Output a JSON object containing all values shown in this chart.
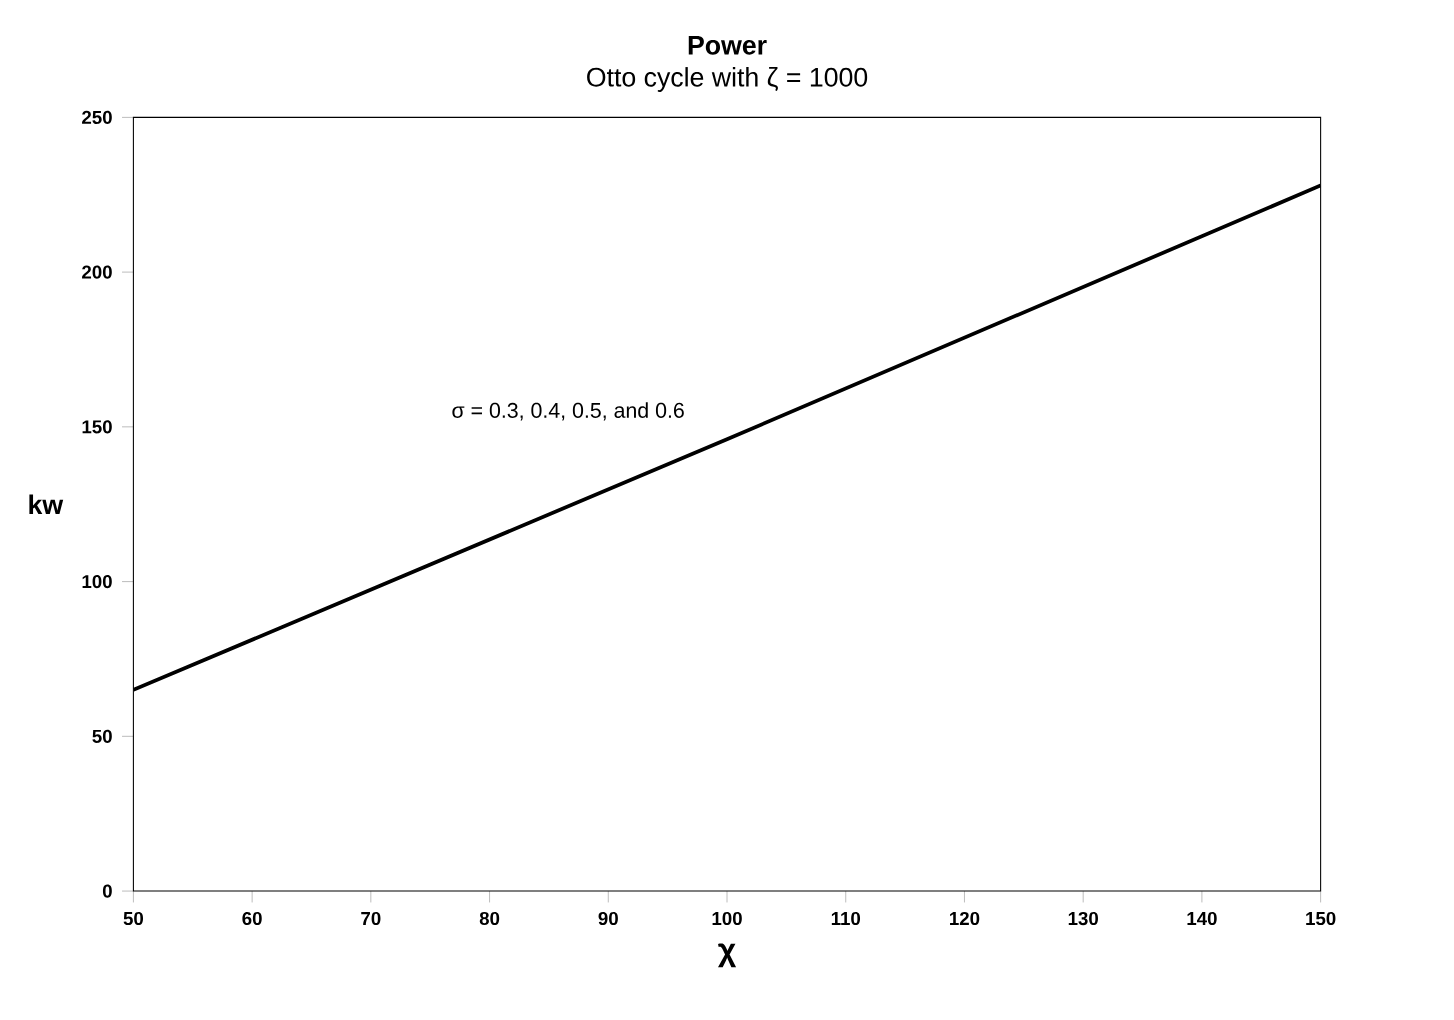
{
  "chart_data": {
    "type": "line",
    "title": "Power",
    "subtitle": "Otto cycle with ζ = 1000",
    "xlabel": "χ",
    "ylabel": "kw",
    "x": [
      50,
      100,
      150
    ],
    "values": [
      65,
      146,
      228
    ],
    "color": "#000000",
    "xlim": [
      50,
      150
    ],
    "ylim": [
      0,
      250
    ],
    "xticks": [
      50,
      60,
      70,
      80,
      90,
      100,
      110,
      120,
      130,
      140,
      150
    ],
    "yticks": [
      0,
      50,
      100,
      150,
      200,
      250
    ],
    "grid": false,
    "marker": "none",
    "line_style": "solid",
    "annotations": [
      "σ = 0.3, 0.4, 0.5, and 0.6"
    ]
  }
}
